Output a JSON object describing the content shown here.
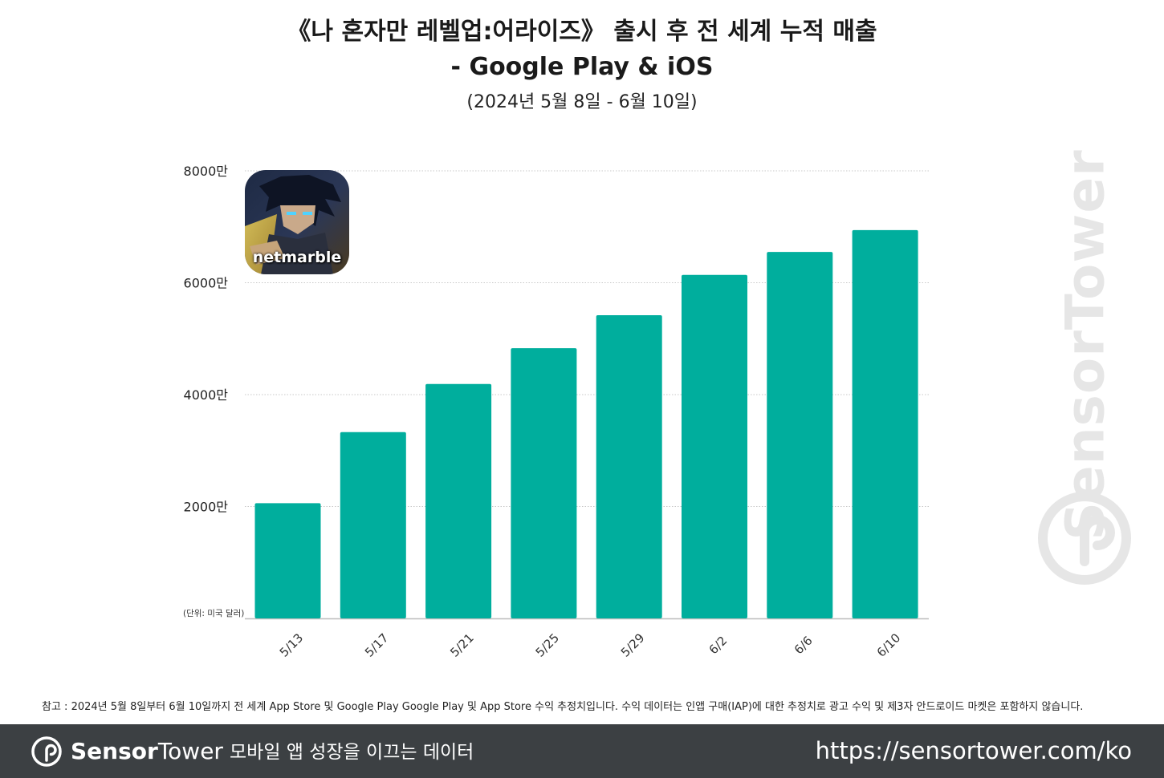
{
  "chart_data": {
    "type": "bar",
    "title_line1": "《나 혼자만 레벨업:어라이즈》 출시 후 전 세계 누적 매출",
    "title_line2": "- Google Play & iOS",
    "subtitle": "(2024년 5월 8일 - 6월 10일)",
    "categories": [
      "5/13",
      "5/17",
      "5/21",
      "5/25",
      "5/29",
      "6/2",
      "6/6",
      "6/10"
    ],
    "values": [
      20600000,
      33300000,
      41900000,
      48300000,
      54200000,
      61400000,
      65500000,
      69400000
    ],
    "ylim": [
      0,
      80000000
    ],
    "yticks": [
      0,
      20000000,
      40000000,
      60000000,
      80000000
    ],
    "ytick_labels": [
      "",
      "2000만",
      "4000만",
      "6000만",
      "8000만"
    ],
    "unit_label": "(단위: 미국 달러)",
    "bar_color": "#00ae9d",
    "grid": true,
    "legend": "none"
  },
  "app_icon": {
    "label": "netmarble",
    "icon": "solo-leveling-app-icon"
  },
  "watermark": {
    "text": "SensorTower",
    "icon": "sensortower-logo-icon"
  },
  "footnote": "참고 : 2024년 5월 8일부터 6월 10일까지 전 세계 App Store 및 Google Play Google Play 및 App Store 수익 추정치입니다. 수익 데이터는 인앱 구매(IAP)에 대한 추정치로 광고 수익 및 제3자 안드로이드 마켓은 포함하지 않습니다.",
  "footer": {
    "brand_part1": "Sensor",
    "brand_part2": "Tower",
    "tagline": "모바일 앱 성장을 이끄는 데이터",
    "url": "https://sensortower.com/ko",
    "background": "#3c4043"
  }
}
